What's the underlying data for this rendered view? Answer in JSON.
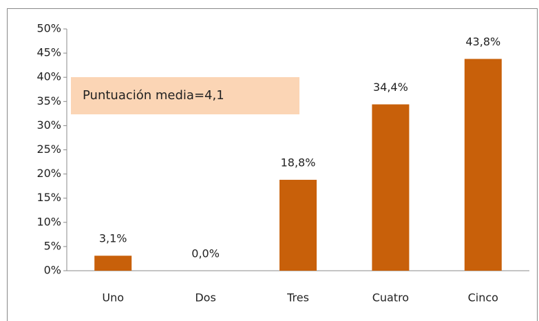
{
  "chart_data": {
    "type": "bar",
    "annotation": "Puntuación media=4,1",
    "categories": [
      "Uno",
      "Dos",
      "Tres",
      "Cuatro",
      "Cinco"
    ],
    "values": [
      3.1,
      0,
      18.8,
      34.4,
      43.8
    ],
    "value_labels": [
      "3,1%",
      "0,0%",
      "18,8%",
      "34,4%",
      "43,8%"
    ],
    "color": "#c8600a",
    "ylim": [
      0,
      50
    ],
    "yticks": [
      {
        "value": 0,
        "label": "0%"
      },
      {
        "value": 5,
        "label": "5%"
      },
      {
        "value": 10,
        "label": "10%"
      },
      {
        "value": 15,
        "label": "15%"
      },
      {
        "value": 20,
        "label": "20%"
      },
      {
        "value": 25,
        "label": "25%"
      },
      {
        "value": 30,
        "label": "30%"
      },
      {
        "value": 35,
        "label": "35%"
      },
      {
        "value": 40,
        "label": "40%"
      },
      {
        "value": 45,
        "label": "45%"
      },
      {
        "value": 50,
        "label": "50%"
      }
    ],
    "grid": false
  }
}
